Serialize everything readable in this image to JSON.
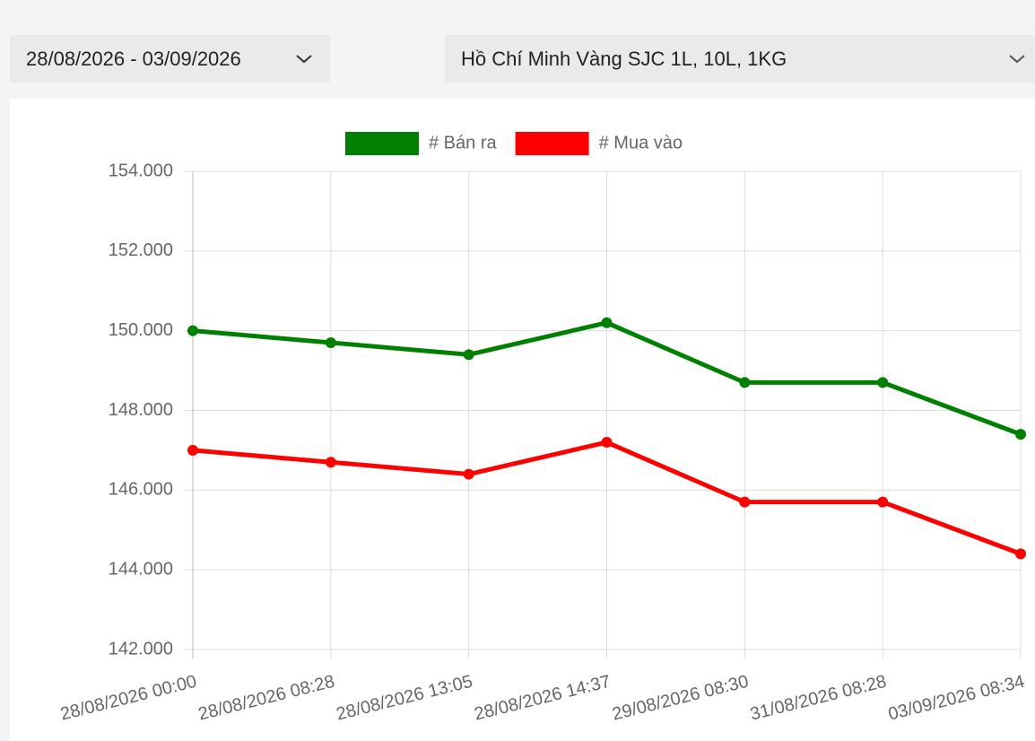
{
  "filters": {
    "date_range": "28/08/2026 - 03/09/2026",
    "product": "Hồ Chí Minh Vàng SJC 1L, 10L, 1KG"
  },
  "chart_data": {
    "type": "line",
    "categories": [
      "28/08/2026 00:00",
      "28/08/2026 08:28",
      "28/08/2026 13:05",
      "28/08/2026 14:37",
      "29/08/2026 08:30",
      "31/08/2026 08:28",
      "03/09/2026 08:34"
    ],
    "series": [
      {
        "name": "# Bán ra",
        "color": "#008000",
        "values": [
          150000,
          149700,
          149400,
          150200,
          148700,
          148700,
          147400
        ]
      },
      {
        "name": "# Mua vào",
        "color": "#ff0000",
        "values": [
          147000,
          146700,
          146400,
          147200,
          145700,
          145700,
          144400
        ]
      }
    ],
    "ylim": [
      142000,
      154000
    ],
    "yticks": [
      {
        "value": 142000,
        "label": "142.000"
      },
      {
        "value": 144000,
        "label": "144.000"
      },
      {
        "value": 146000,
        "label": "146.000"
      },
      {
        "value": 148000,
        "label": "148.000"
      },
      {
        "value": 150000,
        "label": "150.000"
      },
      {
        "value": 152000,
        "label": "152.000"
      },
      {
        "value": 154000,
        "label": "154.000"
      }
    ],
    "grid": true,
    "legend": "top"
  }
}
